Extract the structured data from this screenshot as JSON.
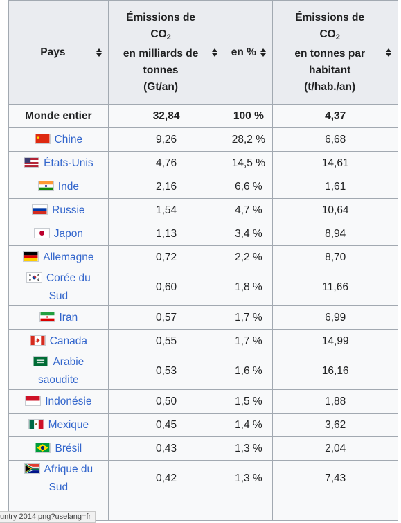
{
  "table": {
    "headers": {
      "pays": "Pays",
      "emissions_gt_line1": "Émissions de",
      "emissions_gt_co": "CO",
      "emissions_gt_sub": "2",
      "emissions_gt_rest": "en milliards de tonnes",
      "emissions_gt_unit": "(Gt/an)",
      "percent": "en %",
      "emissions_pc_line1": "Émissions de",
      "emissions_pc_co": "CO",
      "emissions_pc_sub": "2",
      "emissions_pc_rest": "en tonnes par habitant",
      "emissions_pc_unit": "(t/hab./an)"
    },
    "world_row": {
      "label": "Monde entier",
      "gt": "32,84",
      "pct": "100 %",
      "per_capita": "4,37"
    },
    "rows": [
      {
        "country": "Chine",
        "flag": "china-flag-icon",
        "gt": "9,26",
        "pct": "28,2 %",
        "per_capita": "6,68"
      },
      {
        "country": "États-Unis",
        "flag": "usa-flag-icon",
        "gt": "4,76",
        "pct": "14,5 %",
        "per_capita": "14,61"
      },
      {
        "country": "Inde",
        "flag": "india-flag-icon",
        "gt": "2,16",
        "pct": "6,6 %",
        "per_capita": "1,61"
      },
      {
        "country": "Russie",
        "flag": "russia-flag-icon",
        "gt": "1,54",
        "pct": "4,7 %",
        "per_capita": "10,64"
      },
      {
        "country": "Japon",
        "flag": "japan-flag-icon",
        "gt": "1,13",
        "pct": "3,4 %",
        "per_capita": "8,94"
      },
      {
        "country": "Allemagne",
        "flag": "germany-flag-icon",
        "gt": "0,72",
        "pct": "2,2 %",
        "per_capita": "8,70"
      },
      {
        "country": "Corée du Sud",
        "flag": "south-korea-flag-icon",
        "gt": "0,60",
        "pct": "1,8 %",
        "per_capita": "11,66"
      },
      {
        "country": "Iran",
        "flag": "iran-flag-icon",
        "gt": "0,57",
        "pct": "1,7 %",
        "per_capita": "6,99"
      },
      {
        "country": "Canada",
        "flag": "canada-flag-icon",
        "gt": "0,55",
        "pct": "1,7 %",
        "per_capita": "14,99"
      },
      {
        "country": "Arabie saoudite",
        "flag": "saudi-arabia-flag-icon",
        "gt": "0,53",
        "pct": "1,6 %",
        "per_capita": "16,16"
      },
      {
        "country": "Indonésie",
        "flag": "indonesia-flag-icon",
        "gt": "0,50",
        "pct": "1,5 %",
        "per_capita": "1,88"
      },
      {
        "country": "Mexique",
        "flag": "mexico-flag-icon",
        "gt": "0,45",
        "pct": "1,4 %",
        "per_capita": "3,62"
      },
      {
        "country": "Brésil",
        "flag": "brazil-flag-icon",
        "gt": "0,43",
        "pct": "1,3 %",
        "per_capita": "2,04"
      },
      {
        "country": "Afrique du Sud",
        "flag": "south-africa-flag-icon",
        "gt": "0,42",
        "pct": "1,3 %",
        "per_capita": "7,43"
      }
    ]
  },
  "status_tooltip": "untry 2014.png?uselang=fr",
  "colors": {
    "link": "#3366cc",
    "header_bg": "#eaecf0",
    "cell_bg": "#f8f9fa",
    "border": "#a2a9b1"
  }
}
